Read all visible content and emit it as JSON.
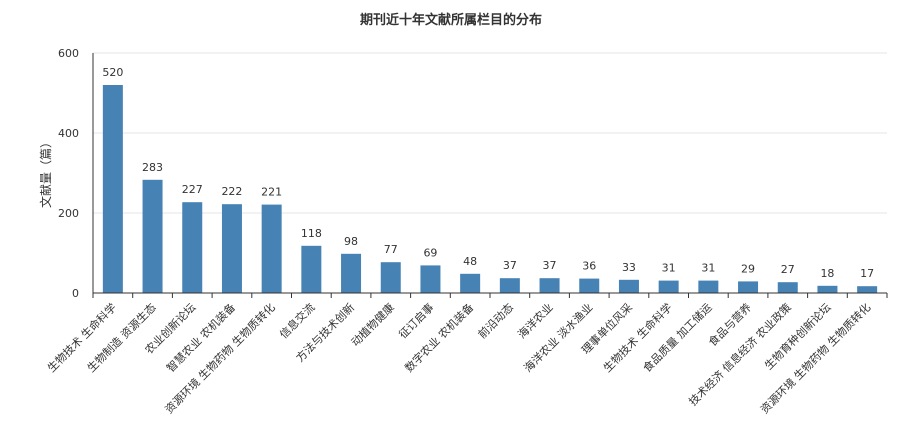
{
  "chart_data": {
    "type": "bar",
    "title": "期刊近十年文献所属栏目的分布",
    "ylabel": "文献量（篇）",
    "xlabel": "",
    "ylim": [
      0,
      600
    ],
    "yticks": [
      0,
      200,
      400,
      600
    ],
    "grid": true,
    "legend": "none",
    "bar_color": "#4682b4",
    "categories": [
      "生物技术 生命科学",
      "生物制造 资源生态",
      "农业创新论坛",
      "智慧农业 农机装备",
      "资源环境 生物药物 生物质转化",
      "信息交流",
      "方法与技术创新",
      "动植物健康",
      "征订启事",
      "数字农业 农机装备",
      "前沿动态",
      "海洋农业",
      "海洋农业 淡水渔业",
      "理事单位风采",
      "生物技术 生命科学",
      "食品质量 加工储运",
      "食品与营养",
      "技术经济 信息经济 农业政策",
      "生物育种创新论坛",
      "资源环境 生物药物 生物质转化"
    ],
    "values": [
      520,
      283,
      227,
      222,
      221,
      118,
      98,
      77,
      69,
      48,
      37,
      37,
      36,
      33,
      31,
      31,
      29,
      27,
      18,
      17
    ]
  }
}
